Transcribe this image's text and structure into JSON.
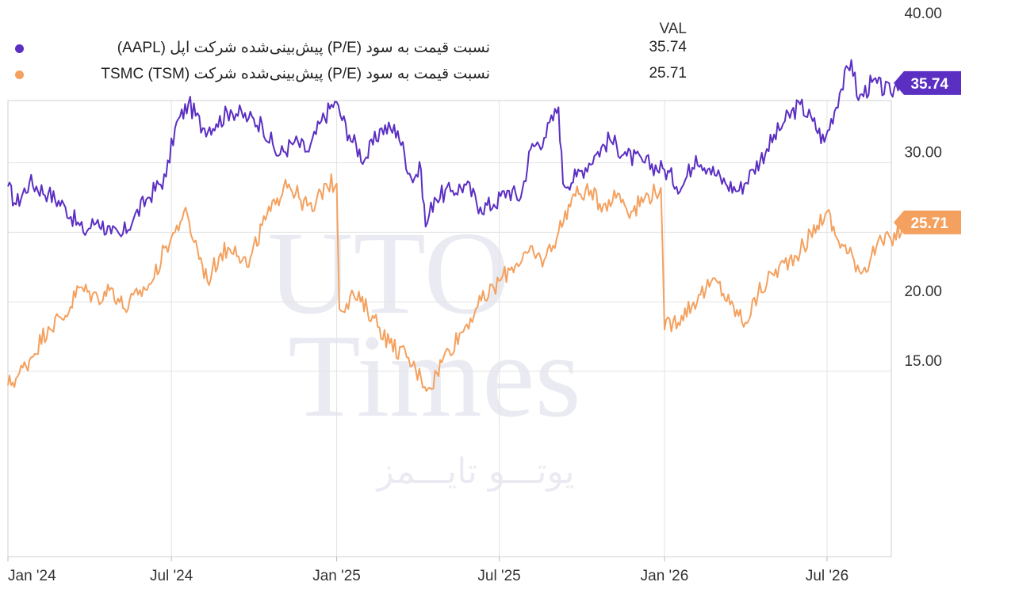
{
  "legend": {
    "value_header": "VAL",
    "rows": [
      {
        "label": "نسبت قیمت به سود (P/E) پیش‌بینی‌شده شرکت اپل (AAPL)",
        "value": "35.74",
        "color": "#5b2fc2"
      },
      {
        "label": "نسبت قیمت به سود (P/E) پیش‌بینی‌شده شرکت TSMC (TSM)",
        "value": "25.71",
        "color": "#f4a15f"
      }
    ]
  },
  "watermark": {
    "line1": "UTO",
    "line2": "Times",
    "line3": "یوتـــو تایـــمز"
  },
  "chart_data": {
    "type": "line",
    "x_start": "Jan 2024",
    "x_end": "Oct 2026",
    "x_ticks": [
      "Jan '24",
      "Jul '24",
      "Jan '25",
      "Jul '25",
      "Jan '26",
      "Jul '26"
    ],
    "y_ticks": [
      "15.00",
      "20.00",
      "30.00",
      "40.00"
    ],
    "ylim": [
      13.3,
      45.8
    ],
    "grid": true,
    "series": [
      {
        "name": "نسبت قیمت به سود (P/E) پیش‌بینی‌شده شرکت اپل (AAPL)",
        "color": "#5b2fc2",
        "last_label": "35.74",
        "points": [
          [
            "2024-01-01",
            28.3
          ],
          [
            "2024-01-10",
            27.0
          ],
          [
            "2024-01-25",
            28.6
          ],
          [
            "2024-02-15",
            27.8
          ],
          [
            "2024-03-05",
            26.8
          ],
          [
            "2024-03-25",
            25.0
          ],
          [
            "2024-04-10",
            25.9
          ],
          [
            "2024-04-25",
            24.9
          ],
          [
            "2024-05-06",
            24.7
          ],
          [
            "2024-05-20",
            26.0
          ],
          [
            "2024-06-05",
            27.5
          ],
          [
            "2024-06-25",
            29.0
          ],
          [
            "2024-07-05",
            32.5
          ],
          [
            "2024-07-20",
            34.3
          ],
          [
            "2024-08-05",
            32.5
          ],
          [
            "2024-08-20",
            32.8
          ],
          [
            "2024-09-05",
            33.8
          ],
          [
            "2024-09-25",
            33.2
          ],
          [
            "2024-10-10",
            32.8
          ],
          [
            "2024-10-28",
            30.5
          ],
          [
            "2024-11-15",
            31.5
          ],
          [
            "2024-12-01",
            30.8
          ],
          [
            "2024-12-15",
            33.0
          ],
          [
            "2024-12-30",
            34.4
          ],
          [
            "2025-01-15",
            32.0
          ],
          [
            "2025-02-01",
            30.2
          ],
          [
            "2025-02-20",
            32.5
          ],
          [
            "2025-03-10",
            32.3
          ],
          [
            "2025-03-25",
            28.9
          ],
          [
            "2025-04-05",
            29.5
          ],
          [
            "2025-04-10",
            25.4
          ],
          [
            "2025-04-20",
            27.5
          ],
          [
            "2025-05-10",
            28.0
          ],
          [
            "2025-05-25",
            28.4
          ],
          [
            "2025-06-10",
            26.8
          ],
          [
            "2025-06-25",
            27.0
          ],
          [
            "2025-07-10",
            28.0
          ],
          [
            "2025-07-25",
            27.5
          ],
          [
            "2025-08-05",
            31.0
          ],
          [
            "2025-08-20",
            31.8
          ],
          [
            "2025-09-05",
            34.0
          ],
          [
            "2025-09-10",
            28.5
          ],
          [
            "2025-09-25",
            29.0
          ],
          [
            "2025-10-15",
            30.5
          ],
          [
            "2025-11-01",
            31.7
          ],
          [
            "2025-11-20",
            30.5
          ],
          [
            "2025-12-10",
            30.0
          ],
          [
            "2026-01-01",
            29.5
          ],
          [
            "2026-01-20",
            28.2
          ],
          [
            "2026-02-05",
            30.5
          ],
          [
            "2026-02-20",
            29.6
          ],
          [
            "2026-03-10",
            28.5
          ],
          [
            "2026-03-25",
            28.0
          ],
          [
            "2026-04-10",
            29.5
          ],
          [
            "2026-04-25",
            31.0
          ],
          [
            "2026-05-15",
            33.0
          ],
          [
            "2026-06-01",
            34.2
          ],
          [
            "2026-06-15",
            33.0
          ],
          [
            "2026-06-28",
            31.5
          ],
          [
            "2026-07-15",
            35.0
          ],
          [
            "2026-07-28",
            37.4
          ],
          [
            "2026-08-05",
            34.5
          ],
          [
            "2026-08-20",
            35.8
          ],
          [
            "2026-09-10",
            35.0
          ],
          [
            "2026-09-20",
            36.0
          ],
          [
            "2026-10-01",
            35.74
          ]
        ]
      },
      {
        "name": "نسبت قیمت به سود (P/E) پیش‌بینی‌شده شرکت TSMC (TSM)",
        "color": "#f4a15f",
        "last_label": "25.71",
        "points": [
          [
            "2024-01-01",
            14.0
          ],
          [
            "2024-01-10",
            14.5
          ],
          [
            "2024-01-25",
            15.8
          ],
          [
            "2024-02-15",
            18.2
          ],
          [
            "2024-03-05",
            19.0
          ],
          [
            "2024-03-20",
            21.0
          ],
          [
            "2024-04-10",
            20.3
          ],
          [
            "2024-04-25",
            21.0
          ],
          [
            "2024-05-10",
            19.5
          ],
          [
            "2024-05-25",
            20.5
          ],
          [
            "2024-06-10",
            21.5
          ],
          [
            "2024-06-25",
            24.0
          ],
          [
            "2024-07-05",
            25.0
          ],
          [
            "2024-07-15",
            26.5
          ],
          [
            "2024-07-30",
            23.8
          ],
          [
            "2024-08-10",
            21.5
          ],
          [
            "2024-08-25",
            23.5
          ],
          [
            "2024-09-10",
            24.0
          ],
          [
            "2024-09-25",
            22.5
          ],
          [
            "2024-10-10",
            25.5
          ],
          [
            "2024-10-25",
            27.0
          ],
          [
            "2024-11-05",
            28.8
          ],
          [
            "2024-11-20",
            27.5
          ],
          [
            "2024-12-05",
            26.5
          ],
          [
            "2024-12-20",
            28.5
          ],
          [
            "2025-01-01",
            28.5
          ],
          [
            "2025-01-04",
            19.5
          ],
          [
            "2025-01-20",
            20.5
          ],
          [
            "2025-02-10",
            19.0
          ],
          [
            "2025-03-01",
            17.0
          ],
          [
            "2025-03-20",
            16.0
          ],
          [
            "2025-04-05",
            14.5
          ],
          [
            "2025-04-15",
            13.8
          ],
          [
            "2025-04-30",
            16.0
          ],
          [
            "2025-05-20",
            17.8
          ],
          [
            "2025-06-05",
            19.5
          ],
          [
            "2025-06-25",
            21.0
          ],
          [
            "2025-07-15",
            22.5
          ],
          [
            "2025-08-01",
            23.5
          ],
          [
            "2025-08-20",
            23.0
          ],
          [
            "2025-09-05",
            25.0
          ],
          [
            "2025-09-20",
            27.5
          ],
          [
            "2025-10-05",
            28.0
          ],
          [
            "2025-10-25",
            27.0
          ],
          [
            "2025-11-10",
            27.8
          ],
          [
            "2025-11-25",
            26.5
          ],
          [
            "2025-12-10",
            27.5
          ],
          [
            "2025-12-28",
            28.2
          ],
          [
            "2026-01-01",
            18.0
          ],
          [
            "2026-01-20",
            19.0
          ],
          [
            "2026-02-10",
            20.5
          ],
          [
            "2026-02-28",
            21.5
          ],
          [
            "2026-03-15",
            19.8
          ],
          [
            "2026-04-01",
            18.5
          ],
          [
            "2026-04-15",
            20.5
          ],
          [
            "2026-05-01",
            22.0
          ],
          [
            "2026-05-20",
            23.0
          ],
          [
            "2026-06-05",
            24.0
          ],
          [
            "2026-06-20",
            25.5
          ],
          [
            "2026-07-01",
            26.5
          ],
          [
            "2026-07-10",
            24.8
          ],
          [
            "2026-07-25",
            23.5
          ],
          [
            "2026-08-10",
            22.2
          ],
          [
            "2026-08-25",
            24.0
          ],
          [
            "2026-09-10",
            24.5
          ],
          [
            "2026-10-01",
            25.71
          ]
        ]
      }
    ]
  }
}
